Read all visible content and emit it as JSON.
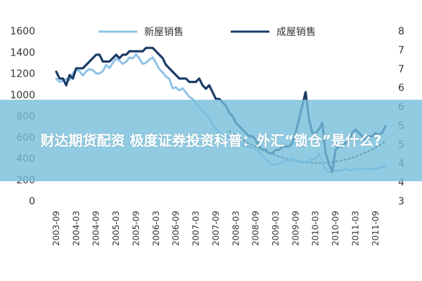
{
  "overlay": {
    "title": "财达期货配资 极度证券投资科普：外汇“锁仓”是什么?"
  },
  "chart_data": {
    "type": "line",
    "x": [
      "2003-09",
      "2003-10",
      "2003-11",
      "2003-12",
      "2004-01",
      "2004-02",
      "2004-03",
      "2004-04",
      "2004-05",
      "2004-06",
      "2004-07",
      "2004-08",
      "2004-09",
      "2004-10",
      "2004-11",
      "2004-12",
      "2005-01",
      "2005-02",
      "2005-03",
      "2005-04",
      "2005-05",
      "2005-06",
      "2005-07",
      "2005-08",
      "2005-09",
      "2005-10",
      "2005-11",
      "2005-12",
      "2006-01",
      "2006-02",
      "2006-03",
      "2006-04",
      "2006-05",
      "2006-06",
      "2006-07",
      "2006-08",
      "2006-09",
      "2006-10",
      "2006-11",
      "2006-12",
      "2007-01",
      "2007-02",
      "2007-03",
      "2007-04",
      "2007-05",
      "2007-06",
      "2007-07",
      "2007-08",
      "2007-09",
      "2007-10",
      "2007-11",
      "2007-12",
      "2008-01",
      "2008-02",
      "2008-03",
      "2008-04",
      "2008-05",
      "2008-06",
      "2008-07",
      "2008-08",
      "2008-09",
      "2008-10",
      "2008-11",
      "2008-12",
      "2009-01",
      "2009-02",
      "2009-03",
      "2009-04",
      "2009-05",
      "2009-06",
      "2009-07",
      "2009-08",
      "2009-09",
      "2009-10",
      "2009-11",
      "2009-12",
      "2010-01",
      "2010-02",
      "2010-03",
      "2010-04",
      "2010-05",
      "2010-06",
      "2010-07",
      "2010-08",
      "2010-09",
      "2010-10",
      "2010-11",
      "2010-12",
      "2011-01",
      "2011-02",
      "2011-03",
      "2011-04",
      "2011-05",
      "2011-06",
      "2011-07",
      "2011-08",
      "2011-09",
      "2011-10",
      "2011-11",
      "2011-12"
    ],
    "x_tick_labels": [
      "2003-09",
      "2004-03",
      "2004-09",
      "2005-03",
      "2005-09",
      "2006-03",
      "2006-09",
      "2007-03",
      "2007-09",
      "2008-03",
      "2008-09",
      "2009-03",
      "2009-09",
      "2010-03",
      "2010-09",
      "2011-03",
      "2011-09"
    ],
    "series": [
      {
        "name": "新屋销售",
        "axis": "left",
        "color": "#8fc3e6",
        "values": [
          1150,
          1120,
          1130,
          1150,
          1140,
          1200,
          1240,
          1220,
          1180,
          1220,
          1240,
          1230,
          1200,
          1200,
          1220,
          1280,
          1250,
          1300,
          1340,
          1320,
          1290,
          1310,
          1350,
          1340,
          1380,
          1340,
          1290,
          1300,
          1330,
          1350,
          1300,
          1240,
          1210,
          1170,
          1150,
          1060,
          1070,
          1040,
          1060,
          1020,
          980,
          960,
          920,
          880,
          850,
          820,
          780,
          720,
          680,
          640,
          620,
          610,
          600,
          590,
          580,
          550,
          520,
          510,
          510,
          500,
          480,
          460,
          420,
          390,
          360,
          340,
          340,
          350,
          360,
          380,
          390,
          400,
          380,
          370,
          360,
          370,
          380,
          390,
          400,
          440,
          380,
          290,
          270,
          280,
          290,
          280,
          290,
          300,
          290,
          290,
          300,
          300,
          300,
          305,
          300,
          300,
          300,
          310,
          320,
          330
        ]
      },
      {
        "name": "成屋销售",
        "axis": "right",
        "color": "#1b3b66",
        "values": [
          6.8,
          6.6,
          6.6,
          6.4,
          6.7,
          6.6,
          6.9,
          6.9,
          6.9,
          7.0,
          7.1,
          7.2,
          7.3,
          7.3,
          7.1,
          7.1,
          7.1,
          7.2,
          7.3,
          7.2,
          7.3,
          7.3,
          7.4,
          7.4,
          7.4,
          7.4,
          7.4,
          7.5,
          7.5,
          7.5,
          7.4,
          7.3,
          7.2,
          7.0,
          6.9,
          6.8,
          6.7,
          6.6,
          6.6,
          6.6,
          6.5,
          6.5,
          6.5,
          6.6,
          6.4,
          6.3,
          6.4,
          6.2,
          6.0,
          6.0,
          5.9,
          5.8,
          5.6,
          5.5,
          5.3,
          5.2,
          5.1,
          5.0,
          4.9,
          4.9,
          4.8,
          4.6,
          4.5,
          4.5,
          4.4,
          4.4,
          4.5,
          4.5,
          4.6,
          4.6,
          4.6,
          4.7,
          5.0,
          5.4,
          5.8,
          6.2,
          5.4,
          5.0,
          5.0,
          5.1,
          5.3,
          4.4,
          4.1,
          3.85,
          4.5,
          4.6,
          4.6,
          4.7,
          4.8,
          5.0,
          5.1,
          5.0,
          4.9,
          4.8,
          4.9,
          4.9,
          5.0,
          4.95,
          5.0,
          5.2
        ]
      }
    ],
    "trend_line": {
      "axis": "right",
      "style": "dotted",
      "color": "#555555",
      "from": "2008-01",
      "to": "2011-12"
    },
    "y_left": {
      "ticks": [
        "0",
        "200",
        "400",
        "600",
        "800",
        "1000",
        "1200",
        "1400",
        "1600"
      ],
      "ylim": [
        0,
        1600
      ]
    },
    "y_right": {
      "ticks": [
        "3",
        "4",
        "4",
        "5",
        "5",
        "6",
        "6",
        "7",
        "7",
        "8"
      ],
      "ylim": [
        3,
        8
      ]
    },
    "legend": {
      "placement": "top"
    },
    "grid": false,
    "title": "",
    "xlabel": "",
    "ylabel": ""
  }
}
